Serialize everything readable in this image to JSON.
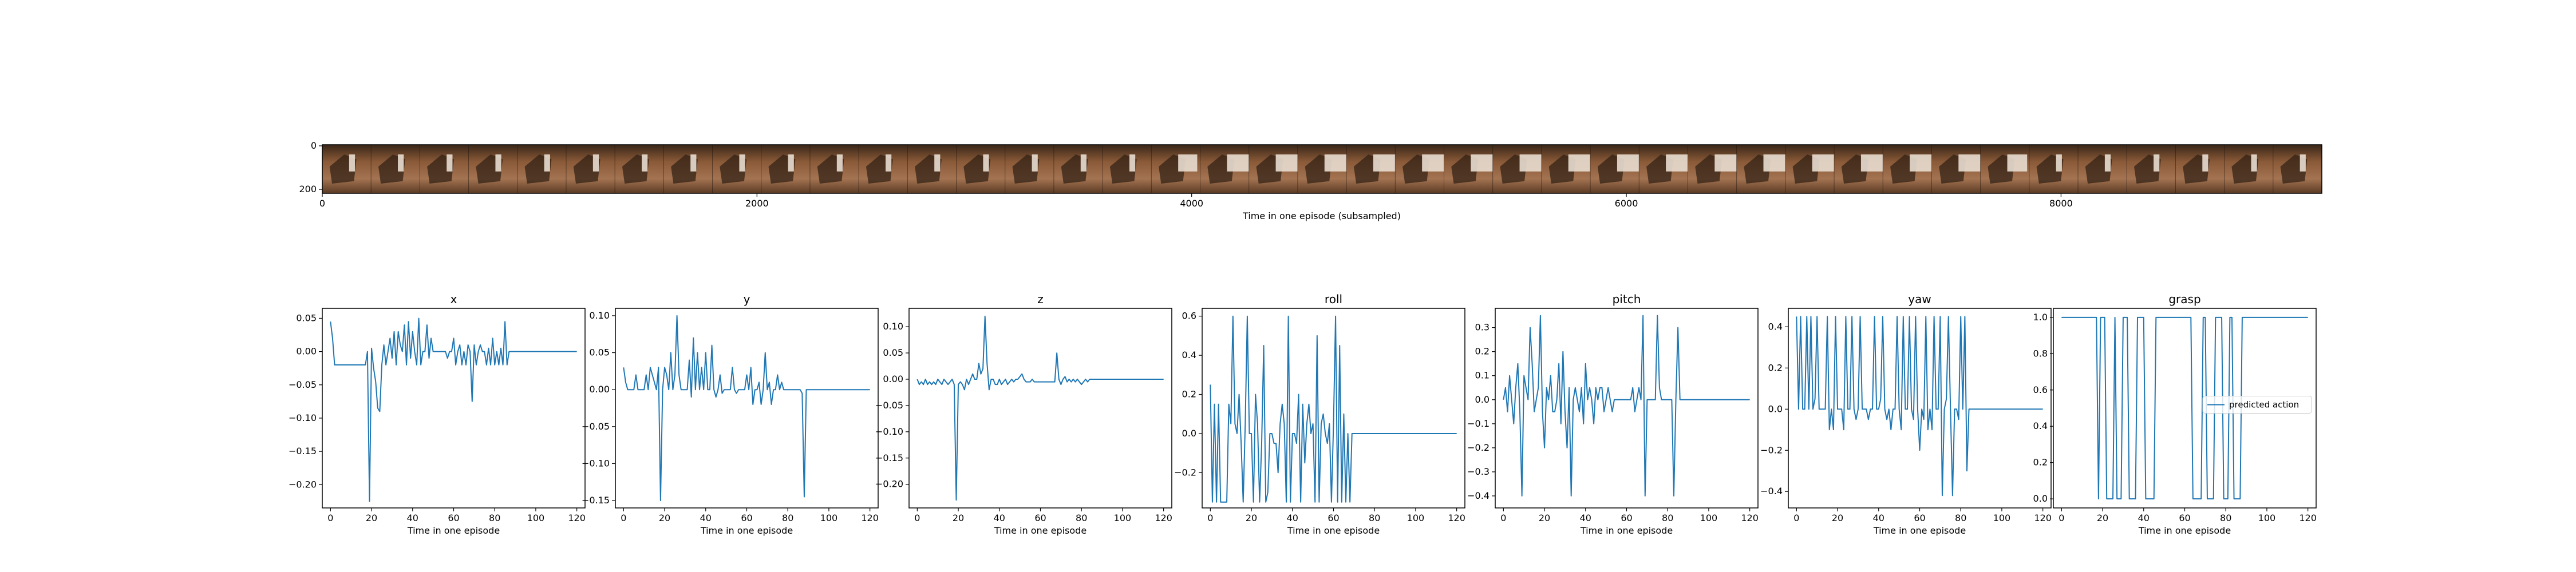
{
  "colors": {
    "line": "#1f77b4",
    "frame": "#000000"
  },
  "filmstrip": {
    "y_ticks": [
      "0",
      "200"
    ],
    "x_ticks": [
      0,
      2000,
      4000,
      6000,
      8000
    ],
    "x_range": [
      0,
      9200
    ],
    "xlabel": "Time in one episode (subsampled)"
  },
  "chart_data": [
    {
      "type": "line",
      "title": "x",
      "xlabel": "Time in one episode",
      "xlim": [
        -4,
        124
      ],
      "xticks": [
        0,
        20,
        40,
        60,
        80,
        100,
        120
      ],
      "ylim": [
        -0.235,
        0.065
      ],
      "yticks": [
        0.05,
        0.0,
        -0.05,
        -0.1,
        -0.15,
        -0.2
      ],
      "ytick_format": 2,
      "series": [
        {
          "name": "predicted action",
          "x_start": 0,
          "x_end": 120,
          "values": [
            0.045,
            0.02,
            -0.02,
            -0.02,
            -0.02,
            -0.02,
            -0.02,
            -0.02,
            -0.02,
            -0.02,
            -0.02,
            -0.02,
            -0.02,
            -0.02,
            -0.02,
            -0.02,
            -0.02,
            -0.02,
            -0.0,
            -0.225,
            0.005,
            -0.025,
            -0.045,
            -0.085,
            -0.09,
            -0.02,
            0.01,
            -0.02,
            0.0,
            0.02,
            -0.01,
            0.03,
            -0.02,
            0.03,
            0.01,
            0.0,
            0.04,
            -0.02,
            0.045,
            -0.01,
            0.03,
            0.0,
            -0.02,
            0.05,
            -0.02,
            0.0,
            0.0,
            0.04,
            -0.01,
            0.02,
            0.0,
            0.0,
            0.0,
            0.0,
            0.0,
            0.0,
            0.0,
            -0.01,
            0.0,
            0.0,
            0.02,
            -0.02,
            0.0,
            0.01,
            -0.02,
            0.0,
            -0.02,
            0.01,
            0.0,
            -0.075,
            0.01,
            -0.02,
            0.0,
            0.01,
            0.0,
            0.0,
            -0.02,
            0.005,
            -0.02,
            0.02,
            -0.02,
            0.0,
            -0.02,
            0.005,
            -0.02,
            0.045,
            -0.02,
            0.0,
            0.0,
            0.0,
            0.0,
            0.0,
            0.0,
            0.0,
            0.0,
            0.0,
            0.0,
            0.0,
            0.0,
            0.0,
            0.0,
            0.0,
            0.0,
            0.0,
            0.0,
            0.0,
            0.0,
            0.0,
            0.0,
            0.0,
            0.0,
            0.0,
            0.0,
            0.0,
            0.0,
            0.0,
            0.0,
            0.0,
            0.0,
            0.0,
            0.0
          ]
        }
      ]
    },
    {
      "type": "line",
      "title": "y",
      "xlabel": "Time in one episode",
      "xlim": [
        -4,
        124
      ],
      "xticks": [
        0,
        20,
        40,
        60,
        80,
        100,
        120
      ],
      "ylim": [
        -0.16,
        0.11
      ],
      "yticks": [
        0.1,
        0.05,
        0.0,
        -0.05,
        -0.1,
        -0.15
      ],
      "ytick_format": 2,
      "series": [
        {
          "name": "predicted action",
          "x_start": 0,
          "x_end": 120,
          "values": [
            0.03,
            0.01,
            0.0,
            0.0,
            0.0,
            0.0,
            0.02,
            0.0,
            0.0,
            0.0,
            0.0,
            0.02,
            0.0,
            0.03,
            0.02,
            0.01,
            0.0,
            0.03,
            -0.15,
            0.0,
            0.03,
            0.02,
            0.0,
            0.05,
            0.0,
            0.02,
            0.1,
            0.02,
            0.0,
            0.0,
            0.0,
            0.0,
            0.04,
            -0.01,
            0.07,
            0.0,
            0.05,
            0.0,
            0.03,
            0.0,
            0.05,
            0.0,
            0.0,
            0.06,
            0.0,
            -0.01,
            0.0,
            0.02,
            -0.005,
            0.0,
            0.0,
            0.0,
            0.0,
            0.03,
            0.0,
            -0.005,
            0.0,
            0.0,
            0.0,
            0.0,
            0.02,
            0.0,
            0.03,
            -0.02,
            0.0,
            0.0,
            0.01,
            -0.02,
            0.0,
            0.05,
            0.0,
            0.01,
            -0.02,
            0.0,
            0.0,
            0.02,
            0.0,
            0.01,
            0.0,
            0.0,
            0.0,
            0.0,
            0.0,
            0.0,
            0.0,
            0.0,
            0.0,
            -0.005,
            -0.145,
            0.0,
            0.0,
            0.0,
            0.0,
            0.0,
            0.0,
            0.0,
            0.0,
            0.0,
            0.0,
            0.0,
            0.0,
            0.0,
            0.0,
            0.0,
            0.0,
            0.0,
            0.0,
            0.0,
            0.0,
            0.0,
            0.0,
            0.0,
            0.0,
            0.0,
            0.0,
            0.0,
            0.0,
            0.0,
            0.0,
            0.0,
            0.0
          ]
        }
      ]
    },
    {
      "type": "line",
      "title": "z",
      "xlabel": "Time in one episode",
      "xlim": [
        -4,
        124
      ],
      "xticks": [
        0,
        20,
        40,
        60,
        80,
        100,
        120
      ],
      "ylim": [
        -0.245,
        0.135
      ],
      "yticks": [
        0.1,
        0.05,
        0.0,
        -0.05,
        -0.1,
        -0.15,
        -0.2
      ],
      "ytick_format": 2,
      "series": [
        {
          "name": "predicted action",
          "x_start": 0,
          "x_end": 120,
          "values": [
            0.0,
            -0.01,
            -0.005,
            -0.01,
            0.0,
            -0.01,
            -0.005,
            -0.01,
            -0.005,
            -0.01,
            0.0,
            -0.005,
            -0.01,
            0.0,
            -0.005,
            -0.01,
            -0.005,
            0.0,
            -0.01,
            -0.23,
            -0.01,
            -0.005,
            -0.01,
            -0.02,
            0.0,
            -0.01,
            0.0,
            0.01,
            0.0,
            0.0,
            0.03,
            0.01,
            0.02,
            0.12,
            0.03,
            -0.02,
            0.0,
            0.0,
            -0.01,
            -0.01,
            0.0,
            -0.01,
            -0.005,
            0.0,
            -0.01,
            -0.005,
            0.0,
            -0.005,
            0.0,
            0.0,
            0.005,
            0.01,
            0.0,
            -0.005,
            -0.005,
            -0.005,
            0.0,
            -0.005,
            -0.005,
            -0.005,
            -0.005,
            -0.005,
            -0.005,
            -0.005,
            -0.005,
            -0.005,
            -0.005,
            -0.005,
            0.05,
            0.0,
            -0.01,
            0.0,
            0.005,
            -0.005,
            0.0,
            -0.005,
            0.0,
            -0.005,
            0.0,
            -0.005,
            -0.01,
            -0.005,
            0.0,
            -0.005,
            0.0,
            0.0,
            0.0,
            0.0,
            0.0,
            0.0,
            0.0,
            0.0,
            0.0,
            0.0,
            0.0,
            0.0,
            0.0,
            0.0,
            0.0,
            0.0,
            0.0,
            0.0,
            0.0,
            0.0,
            0.0,
            0.0,
            0.0,
            0.0,
            0.0,
            0.0,
            0.0,
            0.0,
            0.0,
            0.0,
            0.0,
            0.0,
            0.0,
            0.0,
            0.0,
            0.0,
            0.0
          ]
        }
      ]
    },
    {
      "type": "line",
      "title": "roll",
      "xlabel": "Time in one episode",
      "xlim": [
        -4,
        124
      ],
      "xticks": [
        0,
        20,
        40,
        60,
        80,
        100,
        120
      ],
      "ylim": [
        -0.38,
        0.64
      ],
      "yticks": [
        0.6,
        0.4,
        0.2,
        0.0,
        -0.2
      ],
      "ytick_format": 1,
      "series": [
        {
          "name": "predicted action",
          "x_start": 0,
          "x_end": 120,
          "values": [
            0.25,
            -0.35,
            0.15,
            -0.35,
            0.15,
            -0.35,
            -0.35,
            -0.35,
            -0.35,
            0.15,
            0.05,
            0.6,
            0.05,
            0.0,
            0.2,
            -0.05,
            -0.35,
            0.05,
            0.6,
            0.0,
            0.0,
            -0.35,
            0.2,
            0.05,
            -0.35,
            -0.05,
            0.45,
            -0.35,
            -0.3,
            0.0,
            0.0,
            -0.05,
            -0.05,
            -0.2,
            0.05,
            0.15,
            0.05,
            -0.35,
            0.6,
            -0.35,
            0.0,
            0.0,
            -0.05,
            0.2,
            -0.35,
            0.15,
            -0.15,
            0.05,
            0.15,
            0.0,
            0.05,
            -0.35,
            0.5,
            -0.35,
            0.05,
            0.1,
            0.0,
            -0.05,
            0.05,
            -0.35,
            0.05,
            0.6,
            -0.35,
            0.45,
            -0.35,
            0.1,
            -0.35,
            0.0,
            -0.35,
            0.0,
            0.0,
            0.0,
            0.0,
            0.0,
            0.0,
            0.0,
            0.0,
            0.0,
            0.0,
            0.0,
            0.0,
            0.0,
            0.0,
            0.0,
            0.0,
            0.0,
            0.0,
            0.0,
            0.0,
            0.0,
            0.0,
            0.0,
            0.0,
            0.0,
            0.0,
            0.0,
            0.0,
            0.0,
            0.0,
            0.0,
            0.0,
            0.0,
            0.0,
            0.0,
            0.0,
            0.0,
            0.0,
            0.0,
            0.0,
            0.0,
            0.0,
            0.0,
            0.0,
            0.0,
            0.0,
            0.0,
            0.0,
            0.0,
            0.0,
            0.0,
            0.0
          ]
        }
      ]
    },
    {
      "type": "line",
      "title": "pitch",
      "xlabel": "Time in one episode",
      "xlim": [
        -4,
        124
      ],
      "xticks": [
        0,
        20,
        40,
        60,
        80,
        100,
        120
      ],
      "ylim": [
        -0.45,
        0.38
      ],
      "yticks": [
        0.3,
        0.2,
        0.1,
        0.0,
        -0.1,
        -0.2,
        -0.3,
        -0.4
      ],
      "ytick_format": 1,
      "series": [
        {
          "name": "predicted action",
          "x_start": 0,
          "x_end": 120,
          "values": [
            0.0,
            0.05,
            -0.05,
            0.1,
            0.0,
            -0.1,
            0.05,
            0.15,
            -0.05,
            -0.4,
            0.1,
            0.05,
            0.0,
            0.3,
            0.15,
            -0.05,
            0.0,
            0.05,
            0.35,
            -0.05,
            -0.2,
            0.05,
            0.0,
            0.1,
            -0.05,
            -0.05,
            0.0,
            0.15,
            -0.1,
            0.2,
            -0.05,
            -0.2,
            0.05,
            -0.4,
            0.0,
            0.05,
            0.0,
            -0.05,
            0.05,
            -0.1,
            0.15,
            0.0,
            0.05,
            0.0,
            -0.1,
            0.05,
            0.0,
            0.05,
            0.05,
            -0.05,
            0.0,
            0.05,
            0.0,
            -0.05,
            0.0,
            0.0,
            0.0,
            0.0,
            0.0,
            0.0,
            0.0,
            0.0,
            0.0,
            0.05,
            -0.05,
            0.0,
            0.05,
            0.0,
            0.35,
            -0.4,
            0.0,
            0.0,
            0.0,
            0.0,
            0.0,
            0.35,
            0.05,
            0.0,
            0.0,
            0.0,
            0.0,
            0.0,
            0.0,
            -0.4,
            0.0,
            0.3,
            0.0,
            0.0,
            0.0,
            0.0,
            0.0,
            0.0,
            0.0,
            0.0,
            0.0,
            0.0,
            0.0,
            0.0,
            0.0,
            0.0,
            0.0,
            0.0,
            0.0,
            0.0,
            0.0,
            0.0,
            0.0,
            0.0,
            0.0,
            0.0,
            0.0,
            0.0,
            0.0,
            0.0,
            0.0,
            0.0,
            0.0,
            0.0,
            0.0,
            0.0,
            0.0
          ]
        }
      ]
    },
    {
      "type": "line",
      "title": "yaw",
      "xlabel": "Time in one episode",
      "xlim": [
        -4,
        124
      ],
      "xticks": [
        0,
        20,
        40,
        60,
        80,
        100,
        120
      ],
      "ylim": [
        -0.48,
        0.49
      ],
      "yticks": [
        0.4,
        0.2,
        0.0,
        -0.2,
        -0.4
      ],
      "ytick_format": 1,
      "series": [
        {
          "name": "predicted action",
          "x_start": 0,
          "x_end": 120,
          "values": [
            0.45,
            0.0,
            0.45,
            0.0,
            0.0,
            0.45,
            0.0,
            0.45,
            0.0,
            0.05,
            0.45,
            0.0,
            0.0,
            0.0,
            0.0,
            0.45,
            -0.1,
            0.0,
            -0.1,
            0.45,
            0.0,
            0.0,
            0.0,
            -0.1,
            0.45,
            0.0,
            0.0,
            0.45,
            0.0,
            -0.05,
            0.0,
            0.45,
            0.0,
            0.0,
            0.0,
            -0.05,
            0.0,
            0.0,
            0.45,
            0.0,
            0.0,
            0.05,
            0.45,
            0.0,
            -0.05,
            0.0,
            -0.1,
            0.0,
            0.0,
            0.45,
            0.0,
            -0.1,
            0.45,
            0.0,
            0.0,
            0.45,
            0.0,
            -0.05,
            0.45,
            0.0,
            -0.2,
            0.0,
            -0.05,
            0.45,
            -0.1,
            0.0,
            -0.1,
            0.45,
            0.0,
            0.0,
            0.45,
            -0.42,
            0.0,
            0.05,
            0.45,
            0.0,
            -0.42,
            0.0,
            0.0,
            -0.05,
            0.45,
            0.0,
            0.45,
            -0.3,
            0.0,
            0.0,
            0.0,
            0.0,
            0.0,
            0.0,
            0.0,
            0.0,
            0.0,
            0.0,
            0.0,
            0.0,
            0.0,
            0.0,
            0.0,
            0.0,
            0.0,
            0.0,
            0.0,
            0.0,
            0.0,
            0.0,
            0.0,
            0.0,
            0.0,
            0.0,
            0.0,
            0.0,
            0.0,
            0.0,
            0.0,
            0.0,
            0.0,
            0.0,
            0.0,
            0.0,
            0.0
          ]
        }
      ]
    },
    {
      "type": "line",
      "title": "grasp",
      "xlabel": "Time in one episode",
      "xlim": [
        -4,
        124
      ],
      "xticks": [
        0,
        20,
        40,
        60,
        80,
        100,
        120
      ],
      "ylim": [
        -0.05,
        1.05
      ],
      "yticks": [
        1.0,
        0.8,
        0.6,
        0.4,
        0.2,
        0.0
      ],
      "ytick_format": 1,
      "legend": {
        "location": "center right",
        "entries": [
          "predicted action"
        ]
      },
      "series": [
        {
          "name": "predicted action",
          "x_start": 0,
          "x_end": 120,
          "values": [
            1,
            1,
            1,
            1,
            1,
            1,
            1,
            1,
            1,
            1,
            1,
            1,
            1,
            1,
            1,
            1,
            1,
            1,
            0,
            1,
            1,
            1,
            0,
            0,
            0,
            0,
            1,
            0,
            0,
            0,
            1,
            1,
            1,
            0,
            0,
            0,
            0,
            1,
            1,
            1,
            1,
            0,
            0,
            0,
            0,
            0,
            1,
            1,
            1,
            1,
            1,
            1,
            1,
            1,
            1,
            1,
            1,
            1,
            1,
            1,
            1,
            1,
            1,
            1,
            0,
            0,
            0,
            0,
            0,
            1,
            1,
            0,
            0,
            0,
            0,
            1,
            1,
            1,
            1,
            0,
            0,
            0,
            1,
            1,
            0,
            0,
            0,
            0,
            1,
            1,
            1,
            1,
            1,
            1,
            1,
            1,
            1,
            1,
            1,
            1,
            1,
            1,
            1,
            1,
            1,
            1,
            1,
            1,
            1,
            1,
            1,
            1,
            1,
            1,
            1,
            1,
            1,
            1,
            1,
            1,
            1
          ]
        }
      ]
    }
  ]
}
